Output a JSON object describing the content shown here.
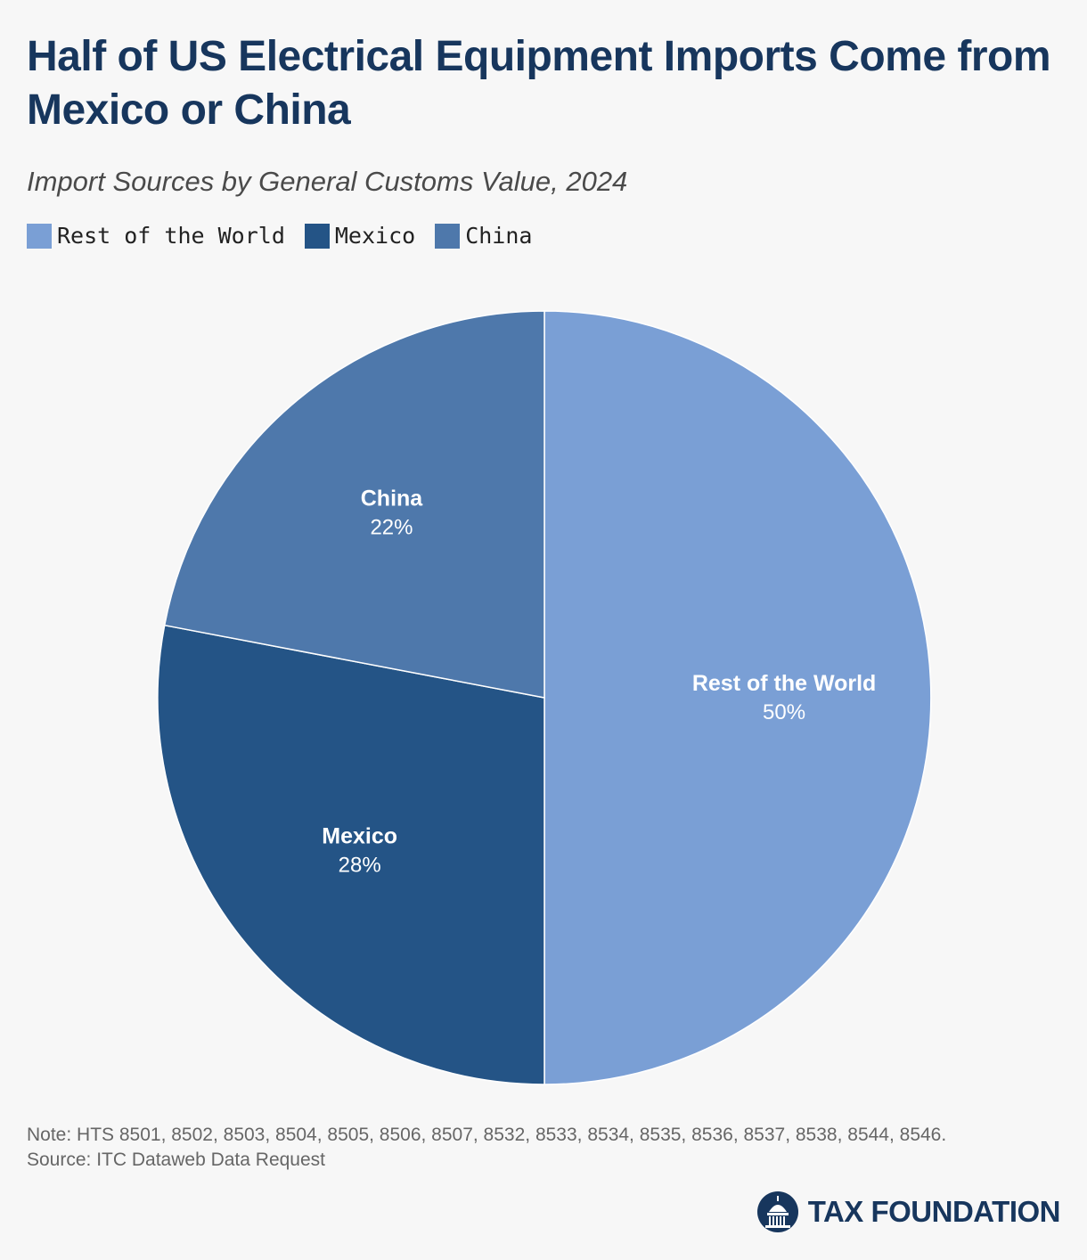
{
  "header": {
    "title": "Half of US Electrical Equipment Imports Come from Mexico or China",
    "subtitle": "Import Sources by General Customs Value, 2024"
  },
  "chart_data": {
    "type": "pie",
    "title": "Half of US Electrical Equipment Imports Come from Mexico or China",
    "subtitle": "Import Sources by General Customs Value, 2024",
    "legend_position": "top-left",
    "slices": [
      {
        "name": "Rest of the World",
        "value": 50,
        "label": "50%",
        "color": "#7a9fd5"
      },
      {
        "name": "Mexico",
        "value": 28,
        "label": "28%",
        "color": "#245486"
      },
      {
        "name": "China",
        "value": 22,
        "label": "22%",
        "color": "#4e78ab"
      }
    ]
  },
  "footer": {
    "note": "Note: HTS 8501, 8502, 8503, 8504, 8505, 8506, 8507, 8532, 8533, 8534, 8535, 8536, 8537, 8538, 8544, 8546.",
    "source": "Source: ITC Dataweb Data Request"
  },
  "brand": {
    "logo_text": "TAX FOUNDATION",
    "logo_icon": "capitol-dome-icon",
    "color": "#17365d"
  }
}
